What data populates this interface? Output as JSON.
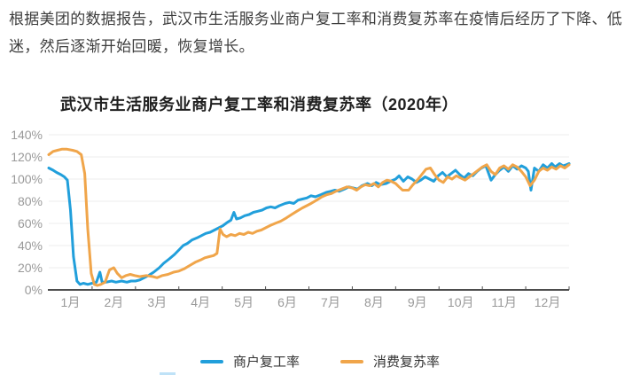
{
  "intro": {
    "text": "根据美团的数据报告，武汉市生活服务业商户复工率和消费复苏率在疫情后经历了下降、低迷，然后逐渐开始回暖，恢复增长。"
  },
  "chart": {
    "title": "武汉市生活服务业商户复工率和消费复苏率（2020年）"
  },
  "colors": {
    "merchant_line": "#219FDB",
    "consumption_line": "#F0A54A",
    "grid_line": "#ECECEC",
    "axis_line": "#4D4D4D",
    "tick_label": "#999999"
  },
  "chart_data": {
    "type": "line",
    "title": "武汉市生活服务业商户复工率和消费复苏率（2020年）",
    "categories": [
      "1月",
      "2月",
      "3月",
      "4月",
      "5月",
      "6月",
      "7月",
      "8月",
      "9月",
      "10月",
      "11月",
      "12月"
    ],
    "y_ticks": [
      "0%",
      "20%",
      "40%",
      "60%",
      "80%",
      "100%",
      "120%",
      "140%"
    ],
    "ylim": [
      0,
      140
    ],
    "xlim_months": [
      0,
      12
    ],
    "grid": true,
    "legend_position": "bottom",
    "x_note": "x is in fractional months, 0 = Jan 1, 12 = Dec 31; y in percent",
    "series": [
      {
        "name": "商户复工率",
        "color": "#219FDB",
        "points": [
          [
            0,
            110
          ],
          [
            0.1,
            108
          ],
          [
            0.18,
            106
          ],
          [
            0.28,
            104
          ],
          [
            0.36,
            102
          ],
          [
            0.43,
            99
          ],
          [
            0.5,
            72
          ],
          [
            0.57,
            30
          ],
          [
            0.65,
            8
          ],
          [
            0.72,
            5
          ],
          [
            0.8,
            6
          ],
          [
            0.9,
            5
          ],
          [
            1.0,
            6
          ],
          [
            1.1,
            7
          ],
          [
            1.18,
            16
          ],
          [
            1.23,
            7
          ],
          [
            1.32,
            7
          ],
          [
            1.45,
            8
          ],
          [
            1.55,
            7
          ],
          [
            1.68,
            8
          ],
          [
            1.8,
            7
          ],
          [
            1.9,
            8
          ],
          [
            2.0,
            8
          ],
          [
            2.1,
            9
          ],
          [
            2.2,
            11
          ],
          [
            2.3,
            13
          ],
          [
            2.42,
            16
          ],
          [
            2.55,
            20
          ],
          [
            2.65,
            24
          ],
          [
            2.78,
            28
          ],
          [
            2.9,
            32
          ],
          [
            3.0,
            36
          ],
          [
            3.1,
            40
          ],
          [
            3.2,
            42
          ],
          [
            3.3,
            45
          ],
          [
            3.42,
            47
          ],
          [
            3.52,
            49
          ],
          [
            3.62,
            51
          ],
          [
            3.72,
            52
          ],
          [
            3.82,
            54
          ],
          [
            3.92,
            56
          ],
          [
            4.02,
            58
          ],
          [
            4.12,
            61
          ],
          [
            4.2,
            63
          ],
          [
            4.27,
            70
          ],
          [
            4.33,
            64
          ],
          [
            4.42,
            65
          ],
          [
            4.52,
            67
          ],
          [
            4.62,
            68
          ],
          [
            4.72,
            70
          ],
          [
            4.82,
            71
          ],
          [
            4.92,
            72
          ],
          [
            5.02,
            74
          ],
          [
            5.12,
            75
          ],
          [
            5.22,
            74
          ],
          [
            5.32,
            76
          ],
          [
            5.45,
            78
          ],
          [
            5.55,
            79
          ],
          [
            5.65,
            78
          ],
          [
            5.75,
            81
          ],
          [
            5.85,
            82
          ],
          [
            5.95,
            83
          ],
          [
            6.05,
            85
          ],
          [
            6.15,
            84
          ],
          [
            6.28,
            86
          ],
          [
            6.4,
            88
          ],
          [
            6.5,
            89
          ],
          [
            6.6,
            90
          ],
          [
            6.7,
            89
          ],
          [
            6.82,
            91
          ],
          [
            6.92,
            93
          ],
          [
            7.02,
            92
          ],
          [
            7.12,
            91
          ],
          [
            7.22,
            94
          ],
          [
            7.35,
            96
          ],
          [
            7.45,
            94
          ],
          [
            7.55,
            97
          ],
          [
            7.65,
            95
          ],
          [
            7.78,
            96
          ],
          [
            7.88,
            98
          ],
          [
            8.0,
            100
          ],
          [
            8.08,
            103
          ],
          [
            8.18,
            98
          ],
          [
            8.28,
            102
          ],
          [
            8.38,
            100
          ],
          [
            8.48,
            97
          ],
          [
            8.58,
            99
          ],
          [
            8.68,
            102
          ],
          [
            8.78,
            100
          ],
          [
            8.88,
            98
          ],
          [
            8.98,
            103
          ],
          [
            9.08,
            106
          ],
          [
            9.18,
            102
          ],
          [
            9.28,
            105
          ],
          [
            9.38,
            108
          ],
          [
            9.48,
            104
          ],
          [
            9.58,
            101
          ],
          [
            9.68,
            105
          ],
          [
            9.78,
            103
          ],
          [
            9.88,
            107
          ],
          [
            9.98,
            110
          ],
          [
            10.08,
            112
          ],
          [
            10.2,
            99
          ],
          [
            10.3,
            104
          ],
          [
            10.4,
            108
          ],
          [
            10.5,
            111
          ],
          [
            10.6,
            107
          ],
          [
            10.7,
            112
          ],
          [
            10.8,
            109
          ],
          [
            10.9,
            112
          ],
          [
            11.0,
            110
          ],
          [
            11.06,
            107
          ],
          [
            11.12,
            90
          ],
          [
            11.2,
            110
          ],
          [
            11.3,
            107
          ],
          [
            11.4,
            113
          ],
          [
            11.5,
            110
          ],
          [
            11.6,
            114
          ],
          [
            11.68,
            111
          ],
          [
            11.78,
            114
          ],
          [
            11.86,
            112
          ],
          [
            11.94,
            113
          ],
          [
            12.0,
            114
          ]
        ]
      },
      {
        "name": "消费复苏率",
        "color": "#F0A54A",
        "points": [
          [
            0,
            122
          ],
          [
            0.1,
            125
          ],
          [
            0.2,
            126
          ],
          [
            0.3,
            127
          ],
          [
            0.42,
            127
          ],
          [
            0.55,
            126
          ],
          [
            0.65,
            125
          ],
          [
            0.75,
            122
          ],
          [
            0.83,
            105
          ],
          [
            0.9,
            55
          ],
          [
            0.98,
            15
          ],
          [
            1.05,
            5
          ],
          [
            1.12,
            4
          ],
          [
            1.2,
            5
          ],
          [
            1.3,
            7
          ],
          [
            1.4,
            18
          ],
          [
            1.5,
            20
          ],
          [
            1.58,
            15
          ],
          [
            1.68,
            11
          ],
          [
            1.78,
            13
          ],
          [
            1.88,
            14
          ],
          [
            1.98,
            13
          ],
          [
            2.1,
            12
          ],
          [
            2.25,
            13
          ],
          [
            2.4,
            12
          ],
          [
            2.5,
            11
          ],
          [
            2.62,
            13
          ],
          [
            2.75,
            14
          ],
          [
            2.88,
            16
          ],
          [
            3.0,
            17
          ],
          [
            3.12,
            19
          ],
          [
            3.25,
            22
          ],
          [
            3.38,
            25
          ],
          [
            3.5,
            27
          ],
          [
            3.6,
            29
          ],
          [
            3.7,
            30
          ],
          [
            3.8,
            31
          ],
          [
            3.88,
            33
          ],
          [
            3.95,
            55
          ],
          [
            4.02,
            50
          ],
          [
            4.1,
            48
          ],
          [
            4.2,
            50
          ],
          [
            4.3,
            49
          ],
          [
            4.4,
            51
          ],
          [
            4.5,
            50
          ],
          [
            4.6,
            52
          ],
          [
            4.7,
            51
          ],
          [
            4.8,
            53
          ],
          [
            4.9,
            54
          ],
          [
            5.0,
            56
          ],
          [
            5.1,
            58
          ],
          [
            5.22,
            60
          ],
          [
            5.35,
            62
          ],
          [
            5.48,
            65
          ],
          [
            5.6,
            68
          ],
          [
            5.72,
            71
          ],
          [
            5.85,
            74
          ],
          [
            5.95,
            76
          ],
          [
            6.05,
            78
          ],
          [
            6.18,
            81
          ],
          [
            6.3,
            84
          ],
          [
            6.42,
            86
          ],
          [
            6.52,
            87
          ],
          [
            6.62,
            89
          ],
          [
            6.75,
            91
          ],
          [
            6.88,
            93
          ],
          [
            7.0,
            92
          ],
          [
            7.1,
            90
          ],
          [
            7.2,
            93
          ],
          [
            7.3,
            95
          ],
          [
            7.4,
            94
          ],
          [
            7.5,
            96
          ],
          [
            7.6,
            93
          ],
          [
            7.7,
            97
          ],
          [
            7.8,
            99
          ],
          [
            7.9,
            98
          ],
          [
            8.0,
            96
          ],
          [
            8.08,
            93
          ],
          [
            8.16,
            90
          ],
          [
            8.3,
            90
          ],
          [
            8.4,
            95
          ],
          [
            8.5,
            99
          ],
          [
            8.6,
            104
          ],
          [
            8.7,
            109
          ],
          [
            8.8,
            110
          ],
          [
            8.9,
            104
          ],
          [
            9.0,
            99
          ],
          [
            9.1,
            97
          ],
          [
            9.2,
            102
          ],
          [
            9.3,
            100
          ],
          [
            9.4,
            103
          ],
          [
            9.5,
            101
          ],
          [
            9.6,
            99
          ],
          [
            9.7,
            102
          ],
          [
            9.8,
            105
          ],
          [
            9.9,
            108
          ],
          [
            10.0,
            111
          ],
          [
            10.1,
            113
          ],
          [
            10.2,
            107
          ],
          [
            10.3,
            104
          ],
          [
            10.4,
            110
          ],
          [
            10.5,
            112
          ],
          [
            10.6,
            109
          ],
          [
            10.7,
            113
          ],
          [
            10.8,
            111
          ],
          [
            10.9,
            107
          ],
          [
            11.0,
            102
          ],
          [
            11.1,
            94
          ],
          [
            11.2,
            99
          ],
          [
            11.3,
            107
          ],
          [
            11.4,
            110
          ],
          [
            11.5,
            108
          ],
          [
            11.6,
            111
          ],
          [
            11.7,
            109
          ],
          [
            11.8,
            112
          ],
          [
            11.9,
            110
          ],
          [
            12.0,
            113
          ]
        ]
      }
    ]
  }
}
